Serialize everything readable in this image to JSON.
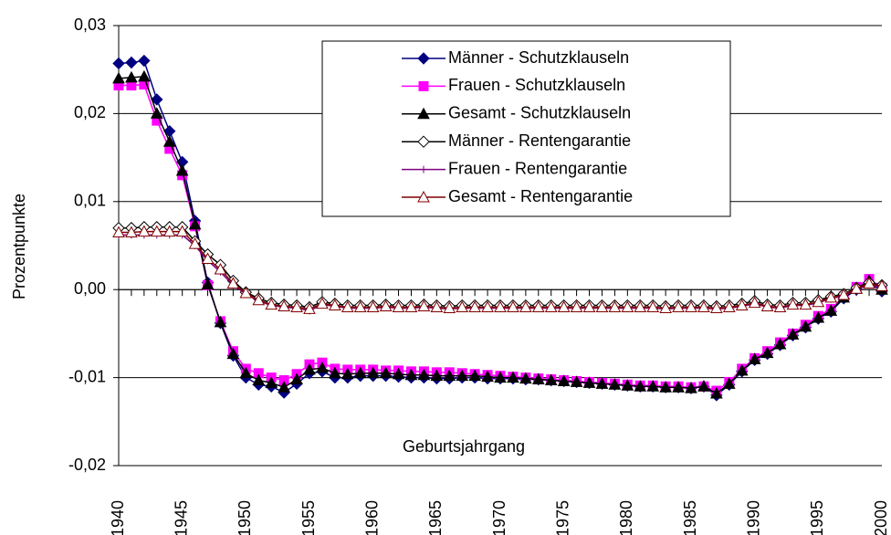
{
  "chart_data": {
    "type": "line",
    "y_label": "Prozentpunkte",
    "x_label": "Geburtsjahrgang",
    "x": [
      1940,
      1941,
      1942,
      1943,
      1944,
      1945,
      1946,
      1947,
      1948,
      1949,
      1950,
      1951,
      1952,
      1953,
      1954,
      1955,
      1956,
      1957,
      1958,
      1959,
      1960,
      1961,
      1962,
      1963,
      1964,
      1965,
      1966,
      1967,
      1968,
      1969,
      1970,
      1971,
      1972,
      1973,
      1974,
      1975,
      1976,
      1977,
      1978,
      1979,
      1980,
      1981,
      1982,
      1983,
      1984,
      1985,
      1986,
      1987,
      1988,
      1989,
      1990,
      1991,
      1992,
      1993,
      1994,
      1995,
      1996,
      1997,
      1998,
      1999,
      2000
    ],
    "xlim": [
      1940,
      2000
    ],
    "xticks": [
      1940,
      1945,
      1950,
      1955,
      1960,
      1965,
      1970,
      1975,
      1980,
      1985,
      1990,
      1995,
      2000
    ],
    "ylim": [
      -0.02,
      0.03
    ],
    "yticks": [
      {
        "value": -0.02,
        "label": "-0,02"
      },
      {
        "value": -0.01,
        "label": "-0,01"
      },
      {
        "value": 0,
        "label": "0,00"
      },
      {
        "value": 0.01,
        "label": "0,01"
      },
      {
        "value": 0.02,
        "label": "0,02"
      },
      {
        "value": 0.03,
        "label": "0,03"
      }
    ],
    "grid": true,
    "legend": "top-right",
    "series": [
      {
        "name": "Männer - Schutzklauseln",
        "color": "#000080",
        "marker": "diamond",
        "filled": true,
        "values": [
          0.0257,
          0.0258,
          0.026,
          0.0216,
          0.018,
          0.0145,
          0.0078,
          0.0008,
          -0.0038,
          -0.0075,
          -0.01,
          -0.0108,
          -0.011,
          -0.0117,
          -0.0107,
          -0.0095,
          -0.0093,
          -0.01,
          -0.01,
          -0.0098,
          -0.0098,
          -0.0098,
          -0.0099,
          -0.01,
          -0.01,
          -0.0101,
          -0.0101,
          -0.01,
          -0.01,
          -0.0101,
          -0.0101,
          -0.0101,
          -0.0102,
          -0.0102,
          -0.0103,
          -0.0104,
          -0.0105,
          -0.0106,
          -0.0107,
          -0.0108,
          -0.0109,
          -0.011,
          -0.011,
          -0.0111,
          -0.0111,
          -0.0112,
          -0.011,
          -0.012,
          -0.0108,
          -0.0093,
          -0.008,
          -0.0073,
          -0.0063,
          -0.0052,
          -0.0043,
          -0.0033,
          -0.0025,
          -0.001,
          0.0,
          0.0008,
          -0.0002
        ]
      },
      {
        "name": "Frauen - Schutzklauseln",
        "color": "#ff00ff",
        "marker": "square",
        "filled": true,
        "values": [
          0.0232,
          0.0232,
          0.0233,
          0.0192,
          0.016,
          0.013,
          0.0072,
          0.0005,
          -0.0036,
          -0.007,
          -0.009,
          -0.0095,
          -0.01,
          -0.0103,
          -0.0096,
          -0.0085,
          -0.0083,
          -0.009,
          -0.0091,
          -0.0091,
          -0.0091,
          -0.0092,
          -0.0092,
          -0.0093,
          -0.0093,
          -0.0094,
          -0.0094,
          -0.0095,
          -0.0096,
          -0.0097,
          -0.0098,
          -0.0099,
          -0.01,
          -0.0101,
          -0.0102,
          -0.0103,
          -0.0104,
          -0.0105,
          -0.0106,
          -0.0107,
          -0.0108,
          -0.0109,
          -0.0109,
          -0.011,
          -0.011,
          -0.0111,
          -0.011,
          -0.0115,
          -0.0105,
          -0.009,
          -0.0078,
          -0.007,
          -0.006,
          -0.005,
          -0.004,
          -0.003,
          -0.0022,
          -0.0008,
          0.0003,
          0.0012,
          0.0002
        ]
      },
      {
        "name": "Gesamt - Schutzklauseln",
        "color": "#000000",
        "marker": "triangle",
        "filled": true,
        "values": [
          0.024,
          0.0241,
          0.0242,
          0.02,
          0.0168,
          0.0135,
          0.0074,
          0.0006,
          -0.0037,
          -0.0073,
          -0.0095,
          -0.0103,
          -0.0106,
          -0.0111,
          -0.0102,
          -0.0091,
          -0.0089,
          -0.0095,
          -0.0096,
          -0.0095,
          -0.0095,
          -0.0095,
          -0.0096,
          -0.0097,
          -0.0097,
          -0.0098,
          -0.0098,
          -0.0098,
          -0.0098,
          -0.0099,
          -0.01,
          -0.01,
          -0.0101,
          -0.0102,
          -0.0103,
          -0.0104,
          -0.0105,
          -0.0106,
          -0.0107,
          -0.0108,
          -0.0109,
          -0.011,
          -0.011,
          -0.0111,
          -0.0111,
          -0.0112,
          -0.011,
          -0.0118,
          -0.0107,
          -0.0092,
          -0.0079,
          -0.0072,
          -0.0062,
          -0.0051,
          -0.0042,
          -0.0032,
          -0.0024,
          -0.0009,
          0.0001,
          0.001,
          0.0
        ]
      },
      {
        "name": "Männer - Rentengarantie",
        "color": "#000000",
        "marker": "diamond",
        "filled": false,
        "values": [
          0.007,
          0.007,
          0.0071,
          0.0071,
          0.0071,
          0.0071,
          0.0055,
          0.004,
          0.0028,
          0.001,
          -0.0003,
          -0.001,
          -0.0015,
          -0.0017,
          -0.0018,
          -0.002,
          -0.0014,
          -0.0016,
          -0.0018,
          -0.0018,
          -0.0018,
          -0.0017,
          -0.0018,
          -0.0018,
          -0.0017,
          -0.0018,
          -0.0019,
          -0.0018,
          -0.0018,
          -0.0018,
          -0.0018,
          -0.0018,
          -0.0018,
          -0.0018,
          -0.0018,
          -0.0018,
          -0.0018,
          -0.0018,
          -0.0018,
          -0.0018,
          -0.0018,
          -0.0018,
          -0.0018,
          -0.0019,
          -0.0018,
          -0.0018,
          -0.0018,
          -0.0019,
          -0.0018,
          -0.0016,
          -0.0013,
          -0.0017,
          -0.0018,
          -0.0015,
          -0.0015,
          -0.0012,
          -0.0008,
          -0.0005,
          0.0002,
          0.0008,
          0.0005
        ]
      },
      {
        "name": "Frauen - Rentengarantie",
        "color": "#800080",
        "marker": "cross",
        "filled": false,
        "values": [
          0.0062,
          0.0062,
          0.0062,
          0.0062,
          0.0062,
          0.0062,
          0.005,
          0.0033,
          0.002,
          0.0005,
          -0.0005,
          -0.0013,
          -0.0018,
          -0.002,
          -0.0021,
          -0.0024,
          -0.0017,
          -0.0019,
          -0.0021,
          -0.0021,
          -0.0021,
          -0.002,
          -0.0021,
          -0.0021,
          -0.002,
          -0.0021,
          -0.0022,
          -0.0021,
          -0.0021,
          -0.0021,
          -0.0021,
          -0.0021,
          -0.0021,
          -0.0021,
          -0.0021,
          -0.0021,
          -0.0021,
          -0.0021,
          -0.0021,
          -0.0021,
          -0.0021,
          -0.0021,
          -0.0021,
          -0.0022,
          -0.0021,
          -0.0021,
          -0.0021,
          -0.0022,
          -0.0021,
          -0.0019,
          -0.0016,
          -0.002,
          -0.0021,
          -0.0018,
          -0.0018,
          -0.0015,
          -0.001,
          -0.0007,
          0.0,
          0.0006,
          0.0003
        ]
      },
      {
        "name": "Gesamt - Rentengarantie",
        "color": "#800000",
        "marker": "triangle",
        "filled": false,
        "values": [
          0.0065,
          0.0065,
          0.0066,
          0.0066,
          0.0066,
          0.0066,
          0.0052,
          0.0035,
          0.0023,
          0.0007,
          -0.0004,
          -0.0012,
          -0.0017,
          -0.0019,
          -0.002,
          -0.0022,
          -0.0016,
          -0.0018,
          -0.002,
          -0.002,
          -0.002,
          -0.0019,
          -0.002,
          -0.002,
          -0.0019,
          -0.002,
          -0.0021,
          -0.002,
          -0.002,
          -0.002,
          -0.002,
          -0.002,
          -0.002,
          -0.002,
          -0.002,
          -0.002,
          -0.002,
          -0.002,
          -0.002,
          -0.002,
          -0.002,
          -0.002,
          -0.002,
          -0.0021,
          -0.002,
          -0.002,
          -0.002,
          -0.0021,
          -0.002,
          -0.0018,
          -0.0015,
          -0.0019,
          -0.002,
          -0.0017,
          -0.0017,
          -0.0014,
          -0.0009,
          -0.0006,
          0.0001,
          0.0007,
          0.0004
        ]
      }
    ]
  }
}
